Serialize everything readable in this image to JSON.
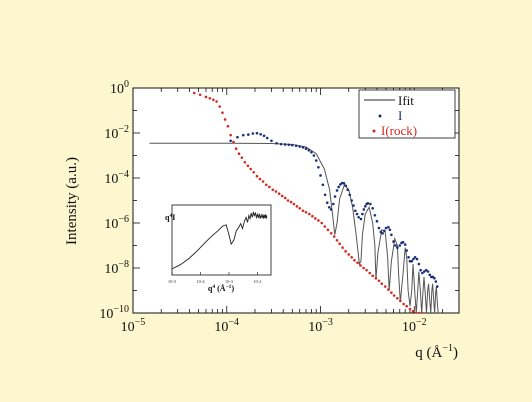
{
  "chart_data": [
    {
      "type": "scatter",
      "xlabel": "q (Å",
      "xlabel_exp": "−1",
      "xlabel_close": ")",
      "ylabel": "Intensity (a.u.)",
      "x_scale": "log",
      "y_scale": "log",
      "xlim": [
        1e-05,
        0.03
      ],
      "ylim": [
        1e-10,
        1
      ],
      "x_ticks": [
        {
          "base": "10",
          "exp": "−5",
          "value": 1e-05
        },
        {
          "base": "10",
          "exp": "−4",
          "value": 0.0001
        },
        {
          "base": "10",
          "exp": "−3",
          "value": 0.001
        },
        {
          "base": "10",
          "exp": "−2",
          "value": 0.01
        }
      ],
      "y_ticks": [
        {
          "base": "10",
          "exp": "0",
          "value": 1
        },
        {
          "base": "10",
          "exp": "−2",
          "value": 0.01
        },
        {
          "base": "10",
          "exp": "−4",
          "value": 0.0001
        },
        {
          "base": "10",
          "exp": "−6",
          "value": 1e-06
        },
        {
          "base": "10",
          "exp": "−8",
          "value": 1e-08
        },
        {
          "base": "10",
          "exp": "−10",
          "value": 1e-10
        }
      ],
      "grid": false,
      "legend_position": "top-right",
      "series": [
        {
          "name": "Ifit",
          "kind": "line",
          "color": "#555555",
          "x": [
            1.5e-05,
            0.0001,
            0.0003,
            0.0005,
            0.0007,
            0.0009,
            0.0011,
            0.00125,
            0.00135,
            0.00142,
            0.0015,
            0.0016,
            0.0018,
            0.002,
            0.0022,
            0.0024,
            0.0026,
            0.0027,
            0.0028,
            0.003,
            0.0033,
            0.0036,
            0.0038,
            0.0039,
            0.0041,
            0.0045,
            0.0049,
            0.0052,
            0.0054,
            0.0057,
            0.0062,
            0.0066,
            0.0068,
            0.0071,
            0.0076,
            0.008,
            0.0083,
            0.0086,
            0.009,
            0.0094,
            0.0097,
            0.0101,
            0.0105,
            0.0109,
            0.0112,
            0.0116,
            0.012,
            0.0124,
            0.0127,
            0.0131,
            0.0135,
            0.0139,
            0.0142,
            0.0146,
            0.015,
            0.0154,
            0.0157,
            0.0161,
            0.0165,
            0.0169,
            0.0172,
            0.0176,
            0.018
          ],
          "y": [
            0.0035,
            0.0035,
            0.0034,
            0.0031,
            0.0024,
            0.0012,
            0.00025,
            3e-05,
            2e-06,
            3e-07,
            1e-06,
            1.2e-05,
            5e-05,
            3e-05,
            5e-06,
            3e-07,
            1.5e-08,
            2e-08,
            3e-07,
            2.5e-06,
            5e-06,
            1e-06,
            1e-07,
            3e-09,
            5e-08,
            5e-07,
            4e-07,
            3e-08,
            1e-09,
            2e-08,
            2e-07,
            1e-07,
            6e-09,
            3e-10,
            6e-09,
            8e-08,
            3e-08,
            1e-09,
            2e-10,
            1e-09,
            1.5e-08,
            1e-09,
            1e-10,
            1e-09,
            7e-09,
            1e-09,
            1e-10,
            1e-09,
            4e-09,
            7e-10,
            1e-10,
            1e-09,
            2e-09,
            4e-10,
            1e-10,
            1e-09,
            2e-09,
            4e-10,
            1e-10,
            8e-10,
            1.5e-09,
            3e-10,
            1e-10
          ]
        },
        {
          "name": "I",
          "kind": "points",
          "color": "#1a2e78",
          "x": [
            0.00011,
            0.00013,
            0.00015,
            0.00017,
            0.00019,
            0.00021,
            0.00023,
            0.00025,
            0.00027,
            0.0003,
            0.00034,
            0.00038,
            0.00042,
            0.00046,
            0.0005,
            0.00055,
            0.0006,
            0.00065,
            0.0007,
            0.00075,
            0.0008,
            0.00085,
            0.0009,
            0.00095,
            0.001,
            0.00106,
            0.00112,
            0.00118,
            0.00124,
            0.0013,
            0.00137,
            0.00143,
            0.0015,
            0.00156,
            0.00163,
            0.0017,
            0.00178,
            0.00186,
            0.00195,
            0.00205,
            0.00215,
            0.00225,
            0.00235,
            0.00245,
            0.00255,
            0.0027,
            0.0028,
            0.0029,
            0.003,
            0.0031,
            0.0032,
            0.0034,
            0.0036,
            0.0038,
            0.004,
            0.0042,
            0.0044,
            0.0046,
            0.0048,
            0.005,
            0.0053,
            0.0055,
            0.0057,
            0.006,
            0.0063,
            0.0066,
            0.007,
            0.0073,
            0.0076,
            0.008,
            0.0083,
            0.0087,
            0.009,
            0.0094,
            0.0098,
            0.0102,
            0.0107,
            0.0112,
            0.0117,
            0.0122,
            0.0128,
            0.0134,
            0.014,
            0.0146,
            0.0152,
            0.0158,
            0.0164,
            0.017,
            0.0176
          ],
          "y": [
            0.0045,
            0.0065,
            0.008,
            0.0085,
            0.0095,
            0.0098,
            0.0088,
            0.0075,
            0.006,
            0.0045,
            0.0035,
            0.0032,
            0.0031,
            0.003,
            0.0029,
            0.0027,
            0.0025,
            0.0023,
            0.002,
            0.0017,
            0.0014,
            0.001,
            0.0006,
            0.0003,
            0.00013,
            5e-05,
            1.8e-05,
            8e-06,
            5e-06,
            4e-06,
            7e-06,
            1.5e-05,
            2.8e-05,
            4e-05,
            5.2e-05,
            6e-05,
            5.8e-05,
            4.5e-05,
            3e-05,
            1.8e-05,
            1e-05,
            6e-06,
            3.5e-06,
            2.5e-06,
            1.8e-06,
            1.5e-06,
            2.5e-06,
            4e-06,
            5.5e-06,
            7e-06,
            7.5e-06,
            7e-06,
            4.5e-06,
            2.2e-06,
            1.2e-06,
            6e-07,
            4e-07,
            3.5e-07,
            4.5e-07,
            6e-07,
            6.5e-07,
            5e-07,
            3e-07,
            1.5e-07,
            1e-07,
            8e-08,
            1e-07,
            1.3e-07,
            1.4e-07,
            1.1e-07,
            6e-08,
            3e-08,
            2e-08,
            2e-08,
            2.5e-08,
            3e-08,
            2.5e-08,
            1.5e-08,
            8e-09,
            6e-09,
            7e-09,
            8e-09,
            7e-09,
            5e-09,
            4e-09,
            4e-09,
            3.5e-09,
            2.5e-09,
            1.5e-09
          ]
        },
        {
          "name": "I(rock)",
          "kind": "points",
          "color": "#d42a1e",
          "x": [
            4.5e-05,
            5.2e-05,
            6e-05,
            6.6e-05,
            7.2e-05,
            7.8e-05,
            8.4e-05,
            9e-05,
            9.6e-05,
            0.000103,
            0.00011,
            0.000118,
            0.000126,
            0.000135,
            0.000145,
            0.000156,
            0.000168,
            0.00018,
            0.000194,
            0.00021,
            0.000226,
            0.000244,
            0.000264,
            0.000285,
            0.00031,
            0.000335,
            0.000362,
            0.00039,
            0.00042,
            0.00045,
            0.000485,
            0.00052,
            0.00056,
            0.0006,
            0.00065,
            0.0007,
            0.00076,
            0.00082,
            0.00088,
            0.00095,
            0.00103,
            0.00111,
            0.0012,
            0.0013,
            0.0014,
            0.0015,
            0.0016,
            0.00172,
            0.00185,
            0.002,
            0.00215,
            0.0023,
            0.00248,
            0.00267,
            0.00288,
            0.0031,
            0.00335,
            0.0036,
            0.0039,
            0.0042,
            0.0045,
            0.0049,
            0.0053,
            0.0057,
            0.0061,
            0.0066,
            0.0071,
            0.0077,
            0.0083,
            0.009,
            0.0097,
            0.0105,
            0.0113,
            0.0122
          ],
          "y": [
            0.6,
            0.5,
            0.4,
            0.35,
            0.3,
            0.25,
            0.15,
            0.08,
            0.04,
            0.02,
            0.008,
            0.004,
            0.002,
            0.0012,
            0.0008,
            0.0005,
            0.00035,
            0.00025,
            0.00018,
            0.00012,
            9e-05,
            7e-05,
            5e-05,
            4e-05,
            3e-05,
            2.5e-05,
            2e-05,
            1.6e-05,
            1.3e-05,
            1e-05,
            8.5e-06,
            7e-06,
            5.5e-06,
            4.5e-06,
            3.5e-06,
            3e-06,
            2.5e-06,
            2e-06,
            1.6e-06,
            1.3e-06,
            1e-06,
            7e-07,
            5e-07,
            3.5e-07,
            2.5e-07,
            1.7e-07,
            1.2e-07,
            8e-08,
            5.5e-08,
            4e-08,
            3e-08,
            2.2e-08,
            1.7e-08,
            1.3e-08,
            1e-08,
            8e-09,
            6e-09,
            4.5e-09,
            3.5e-09,
            2.7e-09,
            2e-09,
            1.5e-09,
            1.1e-09,
            8e-10,
            6e-10,
            4.5e-10,
            3.5e-10,
            2.5e-10,
            2e-10,
            1.5e-10,
            1.2e-10,
            1e-10,
            1e-10,
            1e-10
          ]
        }
      ]
    },
    {
      "type": "line",
      "role": "inset",
      "ylabel_base": "q",
      "ylabel_exp": "4",
      "ylabel_rest": "I",
      "xlabel_base": "q",
      "xlabel_exp": "4",
      "xlabel_rest": " (Å",
      "xlabel_unit_exp": "−1",
      "xlabel_close": ")",
      "x_scale": "log",
      "xlim": [
        1e-05,
        0.03
      ],
      "ylim": [
        0,
        1
      ],
      "series": [
        {
          "color": "#222222",
          "x": [
            1e-05,
            2e-05,
            4e-05,
            8e-05,
            0.00015,
            0.00025,
            0.0004,
            0.0006,
            0.0008,
            0.001,
            0.0012,
            0.0015,
            0.0018,
            0.0022,
            0.0026,
            0.003,
            0.0035,
            0.004,
            0.0045,
            0.005,
            0.0055,
            0.006,
            0.0066,
            0.0072,
            0.0078,
            0.0085,
            0.0092,
            0.01,
            0.0108,
            0.0116,
            0.0125,
            0.0135,
            0.0145,
            0.0155,
            0.0165,
            0.0175,
            0.0185,
            0.0195,
            0.0205,
            0.0215
          ],
          "y": [
            0.05,
            0.12,
            0.22,
            0.35,
            0.48,
            0.58,
            0.66,
            0.74,
            0.76,
            0.6,
            0.45,
            0.52,
            0.66,
            0.72,
            0.78,
            0.7,
            0.82,
            0.88,
            0.8,
            0.91,
            0.86,
            0.95,
            0.88,
            0.97,
            0.9,
            0.96,
            0.88,
            0.93,
            0.87,
            0.94,
            0.86,
            0.92,
            0.87,
            0.93,
            0.86,
            0.92,
            0.87,
            0.93,
            0.86,
            0.91
          ]
        }
      ]
    }
  ]
}
